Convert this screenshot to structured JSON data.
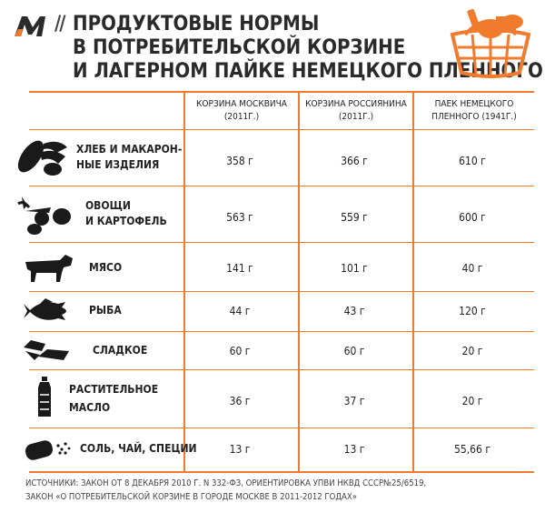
{
  "title_lines": [
    "Продуктовые нормы",
    "в потребительской корзине",
    "и лагерном пайке немецкого пленного"
  ],
  "columns": [
    {
      "line1": "Корзина москвича",
      "line2": "(2011г.)"
    },
    {
      "line1": "Корзина россиянина",
      "line2": "(2011г.)"
    },
    {
      "line1": "Паек немецкого",
      "line2": "пленного (1941г.)"
    }
  ],
  "rows": [
    {
      "label": [
        "Хлеб и макарон-",
        "ные изделия"
      ],
      "icon": "bread-pasta-icon",
      "values": [
        "358 г",
        "366 г",
        "610 г"
      ]
    },
    {
      "label": [
        "Овощи",
        "и картофель"
      ],
      "icon": "vegetables-icon",
      "values": [
        "563 г",
        "559 г",
        "600 г"
      ]
    },
    {
      "label": [
        "Мясо"
      ],
      "icon": "cow-icon",
      "values": [
        "141 г",
        "101 г",
        "40 г"
      ]
    },
    {
      "label": [
        "Рыба"
      ],
      "icon": "fish-icon",
      "values": [
        "44 г",
        "43 г",
        "120 г"
      ]
    },
    {
      "label": [
        "Сладкое"
      ],
      "icon": "candy-icon",
      "values": [
        "60 г",
        "60 г",
        "20 г"
      ]
    },
    {
      "label": [
        "Растительное",
        "масло"
      ],
      "icon": "oil-bottle-icon",
      "values": [
        "36 г",
        "37 г",
        "20 г"
      ]
    },
    {
      "label": [
        "Соль, чай, специи"
      ],
      "icon": "salt-shaker-icon",
      "values": [
        "13 г",
        "13 г",
        "55,66 г"
      ]
    }
  ],
  "footer": [
    "Источники:  Закон от 8 декабря 2010 г. N 332-ФЗ, ориентировка УПВИ НКВД СССР№25/6519,",
    "Закон «О потребительской корзине в городе Москве в 2011-2012 годах»"
  ],
  "colors": {
    "accent": "#f07b2c",
    "text": "#222222",
    "icon": "#1a1a1a"
  },
  "chart_data": {
    "type": "table",
    "title": "Продуктовые нормы в потребительской корзине и лагерном пайке немецкого пленного",
    "columns": [
      "Корзина москвича (2011г.)",
      "Корзина россиянина (2011г.)",
      "Паек немецкого пленного (1941г.)"
    ],
    "categories": [
      "Хлеб и макаронные изделия",
      "Овощи и картофель",
      "Мясо",
      "Рыба",
      "Сладкое",
      "Растительное масло",
      "Соль, чай, специи"
    ],
    "series": [
      {
        "name": "Корзина москвича (2011г.)",
        "values": [
          358,
          563,
          141,
          44,
          60,
          36,
          13
        ]
      },
      {
        "name": "Корзина россиянина (2011г.)",
        "values": [
          366,
          559,
          101,
          43,
          60,
          37,
          13
        ]
      },
      {
        "name": "Паек немецкого пленного (1941г.)",
        "values": [
          610,
          600,
          40,
          120,
          20,
          20,
          55.66
        ]
      }
    ],
    "unit": "г"
  }
}
